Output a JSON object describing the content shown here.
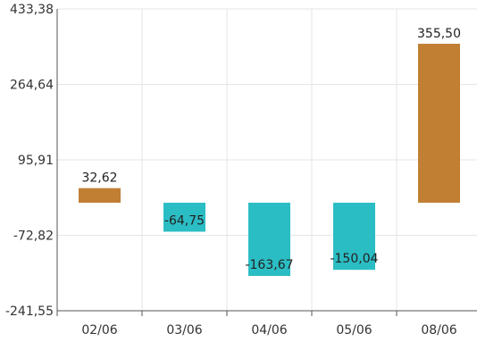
{
  "chart_data": {
    "type": "bar",
    "title": "",
    "xlabel": "",
    "ylabel": "",
    "categories": [
      "02/06",
      "03/06",
      "04/06",
      "05/06",
      "08/06"
    ],
    "values": [
      32.62,
      -64.75,
      -163.67,
      -150.04,
      355.5
    ],
    "data_labels": [
      "32,62",
      "-64,75",
      "-163,67",
      "-150,04",
      "355,50"
    ],
    "ylim": [
      -241.55,
      433.38
    ],
    "y_ticks": [
      433.38,
      264.64,
      95.91,
      -72.82,
      -241.55
    ],
    "y_tick_labels": [
      "433,38",
      "264,64",
      "95,91",
      "-72,82",
      "-241,55"
    ],
    "grid": true,
    "legend": "none",
    "colors": {
      "positive": "#c17f34",
      "negative": "#2bbdc4"
    }
  }
}
